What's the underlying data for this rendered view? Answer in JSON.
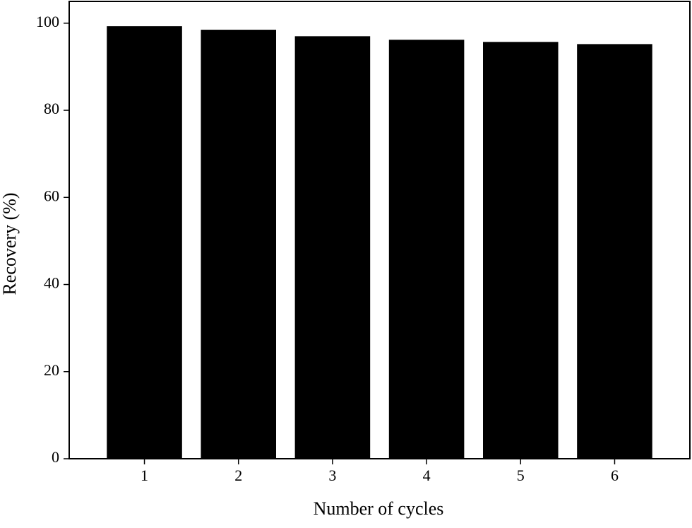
{
  "chart_data": {
    "type": "bar",
    "x_label": "Number of cycles",
    "y_label": "Recovery (%)",
    "x": [
      1,
      2,
      3,
      4,
      5,
      6
    ],
    "values": [
      99.3,
      98.5,
      97.0,
      96.2,
      95.7,
      95.2
    ],
    "color": "#000000",
    "xlim": [
      0.2,
      6.8
    ],
    "xticks": [
      1,
      2,
      3,
      4,
      5,
      6
    ],
    "ylim": [
      0,
      105
    ],
    "yticks": [
      0,
      20,
      40,
      60,
      80,
      100
    ],
    "grid": false
  }
}
